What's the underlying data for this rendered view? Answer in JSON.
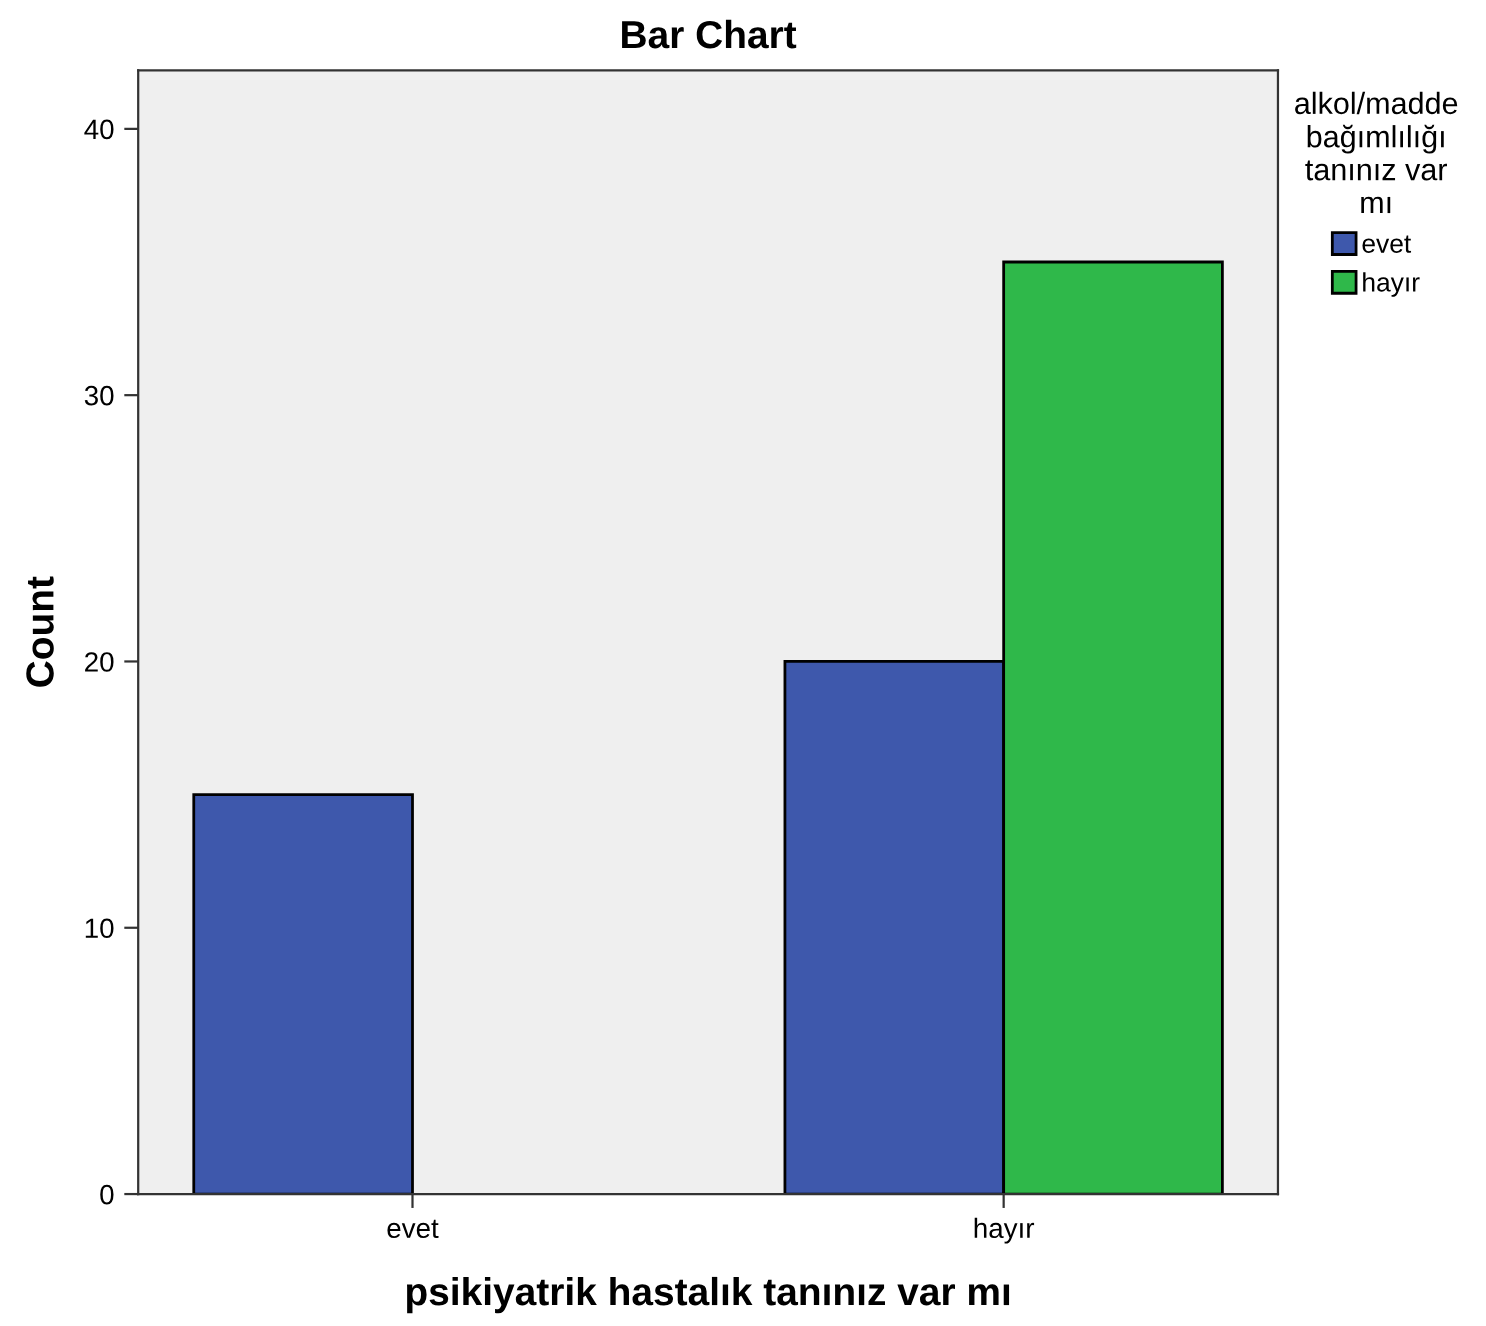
{
  "chart_data": {
    "type": "bar",
    "title": "Bar Chart",
    "xlabel": "psikiyatrik hastalık tanınız var mı",
    "ylabel": "Count",
    "categories": [
      "evet",
      "hayır"
    ],
    "series": [
      {
        "name": "evet",
        "color": "#3e58ac",
        "values": [
          15,
          20
        ]
      },
      {
        "name": "hayır",
        "color": "#2fb84a",
        "values": [
          null,
          35
        ]
      }
    ],
    "legend_title": "alkol/madde\nbağımlılığı\ntanınız var\nmı",
    "legend": "right",
    "ylim": [
      0,
      42.2
    ],
    "yticks": [
      0,
      10,
      20,
      30,
      40
    ],
    "grid": false
  }
}
